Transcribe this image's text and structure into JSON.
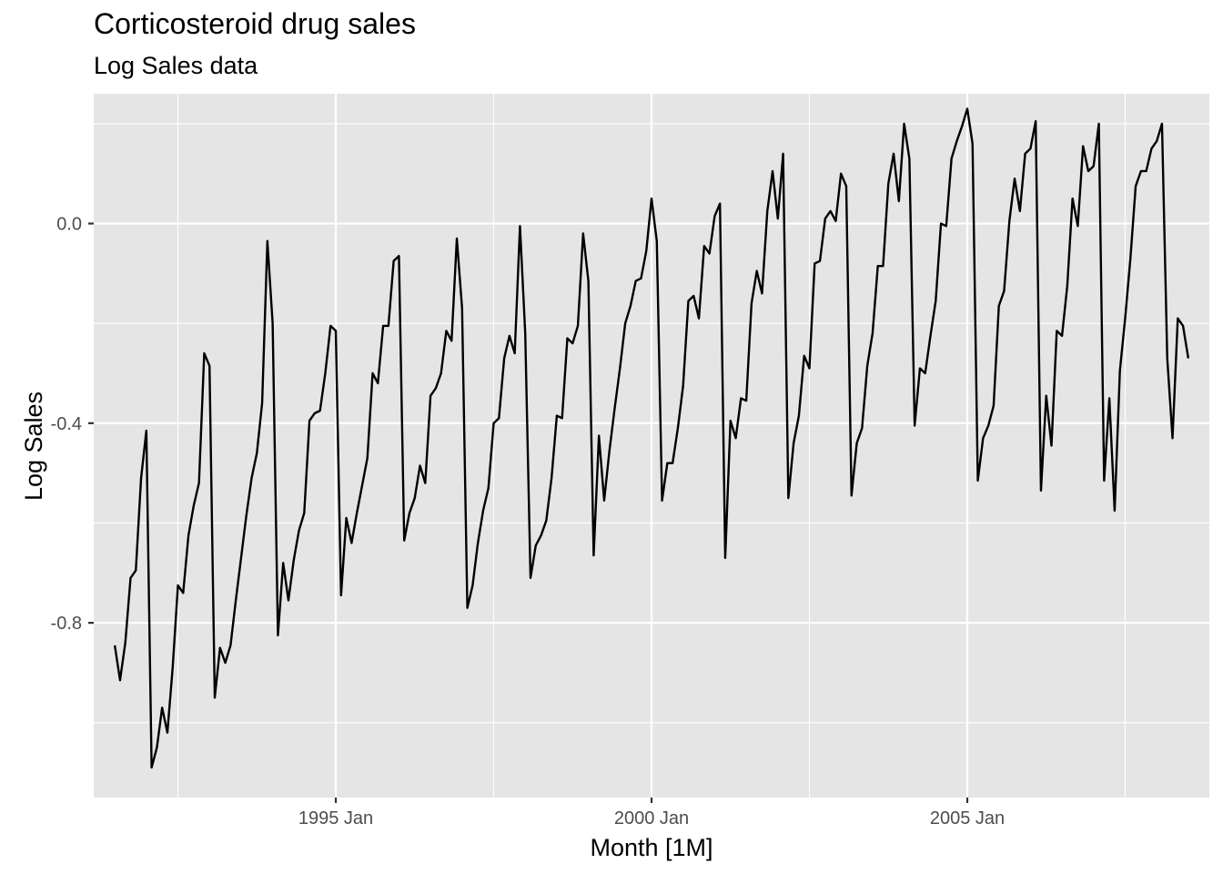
{
  "chart_data": {
    "type": "line",
    "title": "Corticosteroid drug sales",
    "subtitle": "Log Sales data",
    "xlabel": "Month [1M]",
    "ylabel": "Log Sales",
    "x_start": "1991 Jul",
    "frequency": "monthly",
    "xlim": [
      "1991 Mar",
      "2008 Nov"
    ],
    "ylim": [
      -1.15,
      0.26
    ],
    "x_ticks": [
      {
        "date": "1995 Jan",
        "label": "1995 Jan"
      },
      {
        "date": "2000 Jan",
        "label": "2000 Jan"
      },
      {
        "date": "2005 Jan",
        "label": "2005 Jan"
      }
    ],
    "x_minor_ticks": [
      "1992 Jul",
      "1997 Jul",
      "2002 Jul",
      "2007 Jul"
    ],
    "y_ticks": [
      {
        "value": 0.0,
        "label": "0.0"
      },
      {
        "value": -0.4,
        "label": "-0.4"
      },
      {
        "value": -0.8,
        "label": "-0.8"
      }
    ],
    "y_minor_ticks": [
      0.2,
      -0.2,
      -0.6,
      -1.0
    ],
    "grid": true,
    "colors": {
      "panel": "#e5e5e5",
      "grid": "#ffffff",
      "line": "#000000"
    },
    "series": [
      {
        "values": [
          -0.845,
          -0.915,
          -0.84,
          -0.71,
          -0.695,
          -0.51,
          -0.415,
          -1.09,
          -1.05,
          -0.97,
          -1.02,
          -0.89,
          -0.725,
          -0.74,
          -0.625,
          -0.565,
          -0.52,
          -0.26,
          -0.285,
          -0.95,
          -0.85,
          -0.88,
          -0.845,
          -0.755,
          -0.67,
          -0.585,
          -0.51,
          -0.46,
          -0.36,
          -0.035,
          -0.2,
          -0.825,
          -0.68,
          -0.755,
          -0.675,
          -0.615,
          -0.58,
          -0.395,
          -0.38,
          -0.375,
          -0.3,
          -0.205,
          -0.215,
          -0.745,
          -0.59,
          -0.64,
          -0.58,
          -0.525,
          -0.47,
          -0.3,
          -0.32,
          -0.205,
          -0.205,
          -0.075,
          -0.065,
          -0.635,
          -0.58,
          -0.55,
          -0.485,
          -0.52,
          -0.345,
          -0.33,
          -0.3,
          -0.215,
          -0.235,
          -0.03,
          -0.17,
          -0.77,
          -0.725,
          -0.64,
          -0.575,
          -0.53,
          -0.4,
          -0.39,
          -0.27,
          -0.225,
          -0.26,
          -0.005,
          -0.22,
          -0.71,
          -0.645,
          -0.625,
          -0.595,
          -0.51,
          -0.385,
          -0.39,
          -0.23,
          -0.24,
          -0.205,
          -0.02,
          -0.115,
          -0.665,
          -0.425,
          -0.555,
          -0.455,
          -0.37,
          -0.29,
          -0.2,
          -0.165,
          -0.115,
          -0.11,
          -0.055,
          0.05,
          -0.035,
          -0.555,
          -0.48,
          -0.48,
          -0.41,
          -0.325,
          -0.155,
          -0.145,
          -0.19,
          -0.045,
          -0.06,
          0.015,
          0.04,
          -0.67,
          -0.395,
          -0.43,
          -0.35,
          -0.355,
          -0.16,
          -0.095,
          -0.14,
          0.025,
          0.105,
          0.01,
          0.14,
          -0.55,
          -0.44,
          -0.385,
          -0.265,
          -0.29,
          -0.08,
          -0.075,
          0.01,
          0.025,
          0.005,
          0.1,
          0.075,
          -0.545,
          -0.44,
          -0.41,
          -0.285,
          -0.22,
          -0.085,
          -0.085,
          0.08,
          0.14,
          0.045,
          0.2,
          0.13,
          -0.405,
          -0.29,
          -0.3,
          -0.225,
          -0.155,
          0.0,
          -0.005,
          0.13,
          0.165,
          0.195,
          0.23,
          0.16,
          -0.515,
          -0.43,
          -0.405,
          -0.365,
          -0.165,
          -0.135,
          0.005,
          0.09,
          0.025,
          0.14,
          0.15,
          0.205,
          -0.535,
          -0.345,
          -0.445,
          -0.215,
          -0.225,
          -0.125,
          0.05,
          -0.005,
          0.155,
          0.105,
          0.115,
          0.2,
          -0.515,
          -0.35,
          -0.575,
          -0.295,
          -0.19,
          -0.07,
          0.075,
          0.105,
          0.105,
          0.15,
          0.165,
          0.2,
          -0.27,
          -0.43,
          -0.19,
          -0.205,
          -0.27
        ]
      }
    ]
  }
}
